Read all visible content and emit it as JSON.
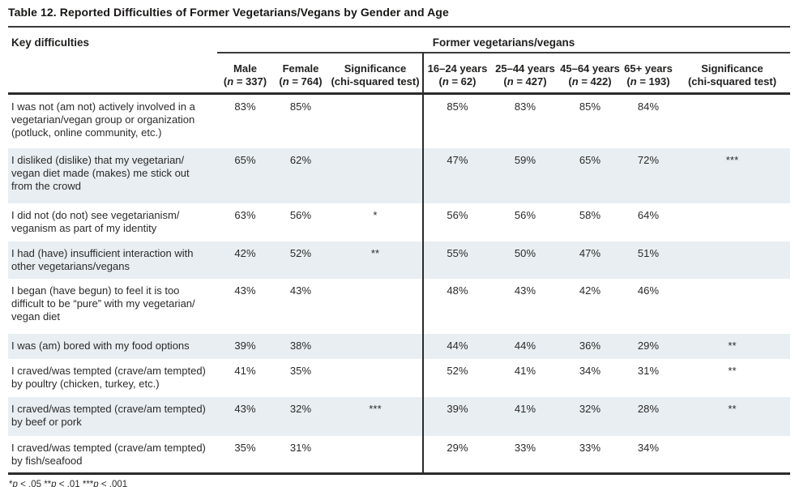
{
  "title": "Table 12. Reported Difficulties of Former Vegetarians/Vegans by Gender and Age",
  "table": {
    "corner_header": "Key difficulties",
    "group_header": "Former vegetarians/vegans",
    "columns": [
      {
        "line1": "Male",
        "line2": [
          {
            "t": "("
          },
          {
            "t": "n",
            "i": true
          },
          {
            "t": " = 337)"
          }
        ]
      },
      {
        "line1": "Female",
        "line2": [
          {
            "t": "("
          },
          {
            "t": "n",
            "i": true
          },
          {
            "t": " = 764)"
          }
        ]
      },
      {
        "line1": "Significance",
        "line2": [
          {
            "t": "(chi-squared test)"
          }
        ]
      },
      {
        "line1": "16–24 years",
        "line2": [
          {
            "t": "("
          },
          {
            "t": "n",
            "i": true
          },
          {
            "t": " = 62)"
          }
        ]
      },
      {
        "line1": "25–44 years",
        "line2": [
          {
            "t": "("
          },
          {
            "t": "n",
            "i": true
          },
          {
            "t": " = 427)"
          }
        ]
      },
      {
        "line1": "45–64 years",
        "line2": [
          {
            "t": "("
          },
          {
            "t": "n",
            "i": true
          },
          {
            "t": " = 422)"
          }
        ]
      },
      {
        "line1": "65+ years",
        "line2": [
          {
            "t": "("
          },
          {
            "t": "n",
            "i": true
          },
          {
            "t": " = 193)"
          }
        ]
      },
      {
        "line1": "Significance",
        "line2": [
          {
            "t": "(chi-squared test)"
          }
        ]
      }
    ],
    "rows": [
      {
        "difficulty": "I was not (am not) actively involved in a vegetarian/vegan group or organization (potluck, online community, etc.)",
        "values": [
          "83%",
          "85%",
          "",
          "85%",
          "83%",
          "85%",
          "84%",
          ""
        ]
      },
      {
        "difficulty": "I disliked (dislike) that my vegetarian/ vegan diet made (makes) me stick out from the crowd",
        "values": [
          "65%",
          "62%",
          "",
          "47%",
          "59%",
          "65%",
          "72%",
          "***"
        ]
      },
      {
        "difficulty": "I did not (do not) see vegetarianism/ veganism as part of my identity",
        "values": [
          "63%",
          "56%",
          "*",
          "56%",
          "56%",
          "58%",
          "64%",
          ""
        ]
      },
      {
        "difficulty": "I had (have) insufficient interaction with other vegetarians/vegans",
        "values": [
          "42%",
          "52%",
          "**",
          "55%",
          "50%",
          "47%",
          "51%",
          ""
        ]
      },
      {
        "difficulty": "I began (have begun) to feel it is too difficult to be “pure” with my vegetarian/ vegan diet",
        "values": [
          "43%",
          "43%",
          "",
          "48%",
          "43%",
          "42%",
          "46%",
          ""
        ]
      },
      {
        "difficulty": "I was (am) bored with my food options",
        "values": [
          "39%",
          "38%",
          "",
          "44%",
          "44%",
          "36%",
          "29%",
          "**"
        ]
      },
      {
        "difficulty": "I craved/was tempted (crave/am tempted) by poultry (chicken, turkey, etc.)",
        "values": [
          "41%",
          "35%",
          "",
          "52%",
          "41%",
          "34%",
          "31%",
          "**"
        ]
      },
      {
        "difficulty": "I craved/was tempted (crave/am tempted) by beef or pork",
        "values": [
          "43%",
          "32%",
          "***",
          "39%",
          "41%",
          "32%",
          "28%",
          "**"
        ]
      },
      {
        "difficulty": "I craved/was tempted (crave/am tempted) by fish/seafood",
        "values": [
          "35%",
          "31%",
          "",
          "29%",
          "33%",
          "33%",
          "34%",
          ""
        ]
      }
    ]
  },
  "footnote": [
    {
      "t": "*"
    },
    {
      "t": "p",
      "i": true
    },
    {
      "t": " < .05 "
    },
    {
      "t": "**"
    },
    {
      "t": "p",
      "i": true
    },
    {
      "t": " < .01 "
    },
    {
      "t": "***"
    },
    {
      "t": "p",
      "i": true
    },
    {
      "t": " < .001"
    }
  ],
  "colors": {
    "shaded_row": "#e8eef2",
    "rule": "#3a3a3a",
    "text": "#2b2a29"
  }
}
